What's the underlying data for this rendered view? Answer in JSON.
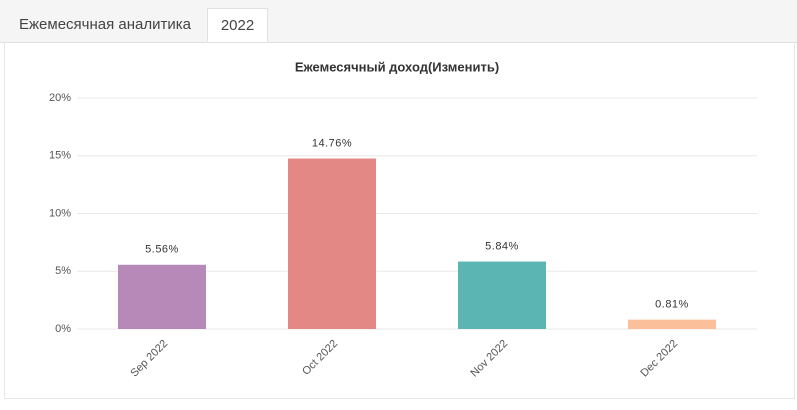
{
  "tabs": [
    "Ежемесячная аналитика",
    "2022"
  ],
  "chart_data": {
    "type": "bar",
    "title": "Ежемесячный доход(Изменить)",
    "categories": [
      "Sep 2022",
      "Oct 2022",
      "Nov 2022",
      "Dec 2022"
    ],
    "values": [
      5.56,
      14.76,
      5.84,
      0.81
    ],
    "value_labels": [
      "5.56%",
      "14.76%",
      "5.84%",
      "0.81%"
    ],
    "colors": [
      "#b689b8",
      "#e38884",
      "#5bb5b3",
      "#fbbf99"
    ],
    "ylim": [
      0,
      20
    ],
    "yticks": [
      {
        "value": 0,
        "label": "0%"
      },
      {
        "value": 5,
        "label": "5%"
      },
      {
        "value": 10,
        "label": "10%"
      },
      {
        "value": 15,
        "label": "15%"
      },
      {
        "value": 20,
        "label": "20%"
      }
    ],
    "grid": true
  }
}
